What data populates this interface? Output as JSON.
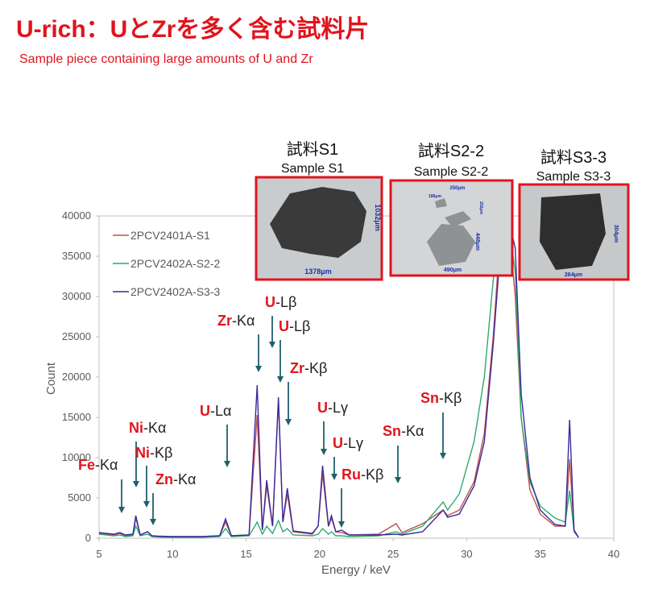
{
  "chart_data": {
    "type": "line",
    "title": "U-rich：UとZrを多く含む試料片",
    "subtitle": "Sample piece containing large amounts of U and Zr",
    "x_label": "Energy / keV",
    "y_label": "Count",
    "xlim": [
      5,
      40
    ],
    "ylim": [
      0,
      40000
    ],
    "xticks": [
      5,
      10,
      15,
      20,
      25,
      30,
      35,
      40
    ],
    "yticks": [
      0,
      5000,
      10000,
      15000,
      20000,
      25000,
      30000,
      35000,
      40000
    ],
    "x": [
      5,
      6,
      6.4,
      6.8,
      7.3,
      7.5,
      7.8,
      8.3,
      8.6,
      9,
      10,
      12,
      13.2,
      13.6,
      14,
      15.2,
      15.75,
      16.1,
      16.4,
      16.8,
      17.2,
      17.5,
      17.8,
      18.2,
      19.5,
      19.9,
      20.2,
      20.6,
      20.8,
      21.1,
      21.5,
      22,
      24,
      25.2,
      25.6,
      27,
      28.4,
      28.7,
      29.5,
      30.5,
      31.2,
      31.8,
      32.3,
      32.8,
      33.3,
      33.7,
      34.3,
      35,
      36,
      36.7,
      37,
      37.3,
      37.6
    ],
    "series": [
      {
        "name": "2PCV2401A-S1",
        "color": "#c0504d",
        "values": [
          600,
          400,
          600,
          300,
          400,
          2500,
          400,
          800,
          300,
          250,
          200,
          200,
          300,
          2000,
          300,
          400,
          15300,
          1000,
          6500,
          1500,
          17000,
          2000,
          5500,
          800,
          500,
          1500,
          8000,
          1500,
          2500,
          800,
          700,
          400,
          500,
          1800,
          700,
          1800,
          3500,
          2800,
          3500,
          7000,
          13000,
          25000,
          38000,
          40000,
          30000,
          15000,
          6000,
          3000,
          1500,
          1500,
          9800,
          1000,
          100
        ]
      },
      {
        "name": "2PCV2402A-S2-2",
        "color": "#2eaa6f",
        "values": [
          500,
          300,
          400,
          200,
          300,
          1500,
          300,
          500,
          200,
          150,
          100,
          100,
          200,
          1200,
          200,
          300,
          2000,
          500,
          1500,
          600,
          2200,
          800,
          1200,
          400,
          300,
          500,
          1200,
          500,
          800,
          300,
          300,
          200,
          300,
          800,
          500,
          1500,
          4500,
          3500,
          5500,
          12000,
          20000,
          32000,
          40000,
          40000,
          33000,
          15000,
          7000,
          4000,
          2500,
          2000,
          5900,
          800,
          100
        ]
      },
      {
        "name": "2PCV2402A-S3-3",
        "color": "#3a2a9a",
        "values": [
          700,
          500,
          700,
          400,
          500,
          2800,
          400,
          800,
          300,
          250,
          200,
          200,
          300,
          2400,
          300,
          400,
          19000,
          1000,
          7200,
          1500,
          17500,
          2000,
          6200,
          900,
          600,
          1500,
          9000,
          1500,
          2800,
          800,
          1000,
          400,
          400,
          500,
          400,
          800,
          3500,
          2600,
          3000,
          6500,
          12000,
          24000,
          36000,
          40000,
          36000,
          18000,
          7500,
          3500,
          1700,
          1500,
          14700,
          1000,
          100
        ]
      }
    ],
    "annotations": [
      {
        "element": "Fe",
        "line": "-Kα"
      },
      {
        "element": "Ni",
        "line": "-Kα"
      },
      {
        "element": "Ni",
        "line": "-Kβ"
      },
      {
        "element": "Zn",
        "line": "-Kα"
      },
      {
        "element": "U",
        "line": "-Lα"
      },
      {
        "element": "Zr",
        "line": "-Kα"
      },
      {
        "element": "U",
        "line": "-Lβ"
      },
      {
        "element": "U",
        "line": "-Lβ"
      },
      {
        "element": "Zr",
        "line": "-Kβ"
      },
      {
        "element": "U",
        "line": "-Lγ"
      },
      {
        "element": "U",
        "line": "-Lγ"
      },
      {
        "element": "Ru",
        "line": "-Kβ"
      },
      {
        "element": "Sn",
        "line": "-Kα"
      },
      {
        "element": "Sn",
        "line": "-Kβ"
      }
    ],
    "samples": [
      {
        "title": "試料S1",
        "subtitle": "Sample S1",
        "scale_labels": [
          "1378μm",
          "1032μm"
        ]
      },
      {
        "title": "試料S2-2",
        "subtitle": "Sample S2-2",
        "scale_labels": [
          "250μm",
          "186μm",
          "202μm",
          "448μm",
          "490μm"
        ]
      },
      {
        "title": "試料S3-3",
        "subtitle": "Sample S3-3",
        "scale_labels": [
          "304μm",
          "264μm"
        ]
      }
    ]
  }
}
